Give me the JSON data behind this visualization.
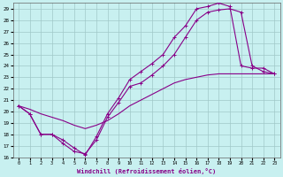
{
  "xlabel": "Windchill (Refroidissement éolien,°C)",
  "bg_color": "#c8f0f0",
  "grid_color": "#a0c8c8",
  "line_color": "#880088",
  "xlim": [
    -0.5,
    23.5
  ],
  "ylim": [
    16,
    29.5
  ],
  "xticks": [
    0,
    1,
    2,
    3,
    4,
    5,
    6,
    7,
    8,
    9,
    10,
    11,
    12,
    13,
    14,
    15,
    16,
    17,
    18,
    19,
    20,
    21,
    22,
    23
  ],
  "yticks": [
    16,
    17,
    18,
    19,
    20,
    21,
    22,
    23,
    24,
    25,
    26,
    27,
    28,
    29
  ],
  "line1_x": [
    0,
    1,
    2,
    3,
    4,
    5,
    6,
    7,
    8,
    9,
    10,
    11,
    12,
    13,
    14,
    15,
    16,
    17,
    18,
    19,
    20,
    21,
    22,
    23
  ],
  "line1_y": [
    20.5,
    19.8,
    18.0,
    18.0,
    17.2,
    16.5,
    16.3,
    17.5,
    19.5,
    20.8,
    22.2,
    22.5,
    23.2,
    24.0,
    25.0,
    26.5,
    28.0,
    28.7,
    28.9,
    29.0,
    28.7,
    24.0,
    23.5,
    23.3
  ],
  "line2_x": [
    0,
    1,
    2,
    3,
    4,
    5,
    6,
    7,
    8,
    9,
    10,
    11,
    12,
    13,
    14,
    15,
    16,
    17,
    18,
    19,
    20,
    21,
    22,
    23
  ],
  "line2_y": [
    20.5,
    19.8,
    18.0,
    18.0,
    17.5,
    16.8,
    16.2,
    17.8,
    19.8,
    21.2,
    22.8,
    23.5,
    24.2,
    25.0,
    26.5,
    27.5,
    29.0,
    29.2,
    29.5,
    29.2,
    24.0,
    23.8,
    23.8,
    23.3
  ],
  "line3_x": [
    0,
    1,
    2,
    3,
    4,
    5,
    6,
    7,
    8,
    9,
    10,
    11,
    12,
    13,
    14,
    15,
    16,
    17,
    18,
    19,
    20,
    21,
    22,
    23
  ],
  "line3_y": [
    20.5,
    20.2,
    19.8,
    19.5,
    19.2,
    18.8,
    18.5,
    18.8,
    19.2,
    19.8,
    20.5,
    21.0,
    21.5,
    22.0,
    22.5,
    22.8,
    23.0,
    23.2,
    23.3,
    23.3,
    23.3,
    23.3,
    23.3,
    23.3
  ]
}
